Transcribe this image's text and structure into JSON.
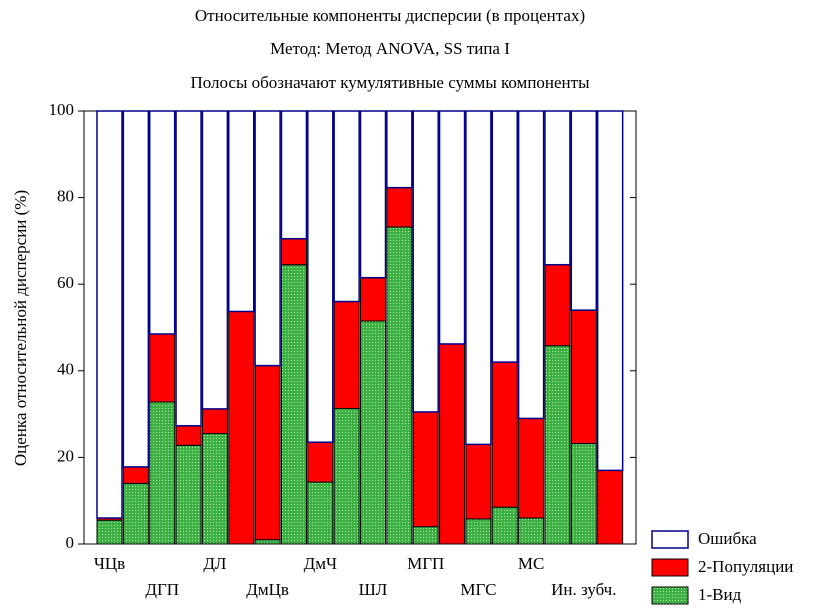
{
  "chart_data": {
    "type": "stacked_bar",
    "title": "Относительные компоненты дисперсии (в процентах)",
    "subtitles": [
      "Метод: Метод ANOVA, SS типа I",
      "Полосы обозначают кумулятивные суммы компоненты"
    ],
    "y_label": "Оценка относительной дисперсии (%)",
    "categories": [
      "ЧЦв",
      null,
      "ДГП",
      null,
      "ДЛ",
      null,
      "ДмЦв",
      null,
      "ДмЧ",
      null,
      "ШЛ",
      null,
      "МГП",
      null,
      "МГС",
      null,
      "МС",
      null,
      "Ин. зубч.",
      null
    ],
    "series": [
      {
        "name": "1-Вид",
        "color": "#3cb043",
        "values": [
          5.5,
          14,
          32.8,
          22.8,
          25.5,
          0,
          1,
          64.5,
          14.3,
          31.3,
          51.5,
          73.2,
          4,
          0,
          5.8,
          8.5,
          6,
          45.8,
          23.2,
          0
        ]
      },
      {
        "name": "2-Популяции",
        "color": "#ff0000",
        "values": [
          0.5,
          3.8,
          15.7,
          4.5,
          5.7,
          53.7,
          40.2,
          6,
          9.2,
          24.7,
          10,
          9.1,
          26.5,
          46.2,
          17.2,
          33.5,
          23,
          18.7,
          30.8,
          17
        ]
      },
      {
        "name": "Ошибка",
        "color": "#00008b",
        "values": [
          94,
          82.2,
          51.5,
          72.7,
          68.8,
          46.3,
          58.8,
          29.5,
          76.5,
          44,
          38.5,
          17.7,
          69.5,
          53.8,
          77,
          58,
          71,
          35.5,
          46,
          83
        ]
      }
    ],
    "ylim": [
      0,
      100
    ],
    "yticks": [
      0,
      20,
      40,
      60,
      80,
      100
    ]
  }
}
